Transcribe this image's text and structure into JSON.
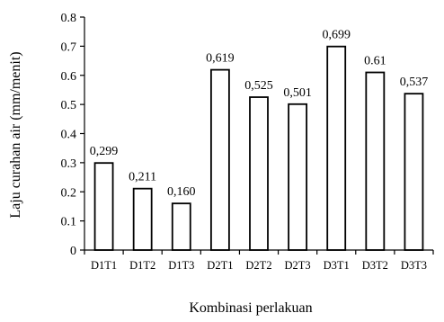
{
  "chart_data": {
    "type": "bar",
    "title": "",
    "xlabel": "Kombinasi perlakuan",
    "ylabel": "Laju curahan air (mm/menit)",
    "categories": [
      "D1T1",
      "D1T2",
      "D1T3",
      "D2T1",
      "D2T2",
      "D2T3",
      "D3T1",
      "D3T2",
      "D3T3"
    ],
    "values": [
      0.299,
      0.211,
      0.16,
      0.619,
      0.525,
      0.501,
      0.699,
      0.61,
      0.537
    ],
    "value_labels": [
      "0,299",
      "0,211",
      "0,160",
      "0,619",
      "0,525",
      "0,501",
      "0,699",
      "0.61",
      "0,537"
    ],
    "ylim": [
      0,
      0.8
    ],
    "yticks": [
      0,
      0.1,
      0.2,
      0.3,
      0.4,
      0.5,
      0.6,
      0.7,
      0.8
    ],
    "ytick_labels": [
      "0",
      "0.1",
      "0.2",
      "0.3",
      "0.4",
      "0.5",
      "0.6",
      "0.7",
      "0.8"
    ],
    "grid": false,
    "legend": "none",
    "bar_fill": "#ffffff",
    "bar_stroke": "#000000",
    "axis_color": "#000000"
  }
}
